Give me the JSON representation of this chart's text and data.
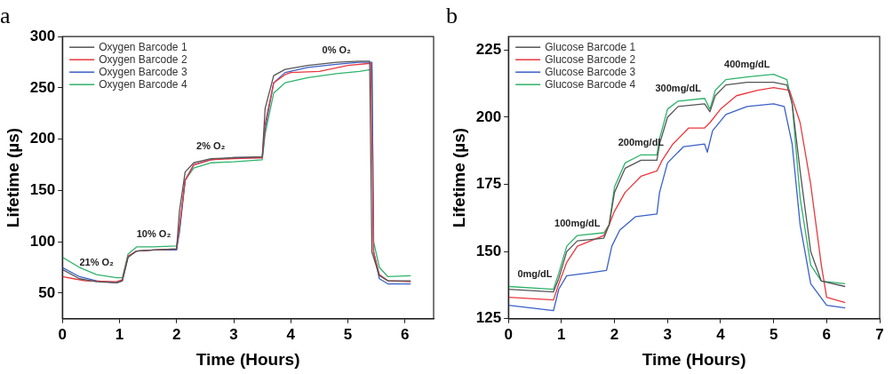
{
  "chart_data": [
    {
      "type": "line",
      "title": "a",
      "xlabel": "Time (Hours)",
      "ylabel": "Lifetime (µs)",
      "xlim": [
        0,
        6.5
      ],
      "xticks": [
        0,
        1,
        2,
        3,
        4,
        5,
        6
      ],
      "ylim": [
        25,
        300
      ],
      "yticks": [
        50,
        100,
        150,
        200,
        250,
        300
      ],
      "grid": false,
      "legend": "top left",
      "marker": "none",
      "line_style": "solid",
      "annotations": [
        {
          "text": "21% O₂",
          "x": 0.6,
          "y": 68
        },
        {
          "text": "10% O₂",
          "x": 1.6,
          "y": 95
        },
        {
          "text": "2% O₂",
          "x": 2.6,
          "y": 181
        },
        {
          "text": "0% O₂",
          "x": 4.8,
          "y": 275
        }
      ],
      "series": [
        {
          "name": "Oxygen Barcode 1",
          "color": "#555555",
          "x": [
            0,
            0.3,
            0.6,
            0.95,
            1.05,
            1.15,
            1.3,
            1.6,
            2.0,
            2.05,
            2.15,
            2.3,
            2.6,
            3.0,
            3.5,
            3.55,
            3.7,
            3.9,
            4.3,
            4.8,
            5.2,
            5.38,
            5.42,
            5.55,
            5.7,
            6.1
          ],
          "values": [
            73,
            64,
            61,
            60,
            62,
            85,
            91,
            92,
            93,
            130,
            168,
            177,
            181,
            182,
            183,
            230,
            262,
            268,
            272,
            275,
            276,
            276,
            90,
            67,
            62,
            62
          ]
        },
        {
          "name": "Oxygen Barcode 2",
          "color": "#e8383d",
          "x": [
            0,
            0.2,
            0.4,
            0.95,
            1.05,
            1.15,
            1.3,
            1.6,
            2.0,
            2.05,
            2.15,
            2.3,
            2.6,
            3.0,
            3.5,
            3.55,
            3.7,
            3.9,
            4.0,
            4.5,
            5.0,
            5.4,
            5.45,
            5.55,
            5.7,
            6.1
          ],
          "values": [
            66,
            64,
            62,
            61,
            63,
            86,
            91,
            92,
            93,
            115,
            160,
            175,
            180,
            181,
            182,
            215,
            255,
            263,
            265,
            266,
            272,
            274,
            90,
            68,
            62,
            61
          ]
        },
        {
          "name": "Oxygen Barcode 3",
          "color": "#3a5fc8",
          "x": [
            0,
            0.3,
            0.6,
            0.95,
            1.05,
            1.15,
            1.3,
            1.6,
            2.0,
            2.05,
            2.15,
            2.3,
            2.6,
            3.0,
            3.5,
            3.55,
            3.7,
            3.9,
            4.3,
            4.8,
            5.2,
            5.42,
            5.45,
            5.55,
            5.7,
            6.1
          ],
          "values": [
            75,
            66,
            62,
            60,
            62,
            85,
            91,
            92,
            92,
            110,
            160,
            175,
            180,
            182,
            182,
            210,
            255,
            265,
            270,
            273,
            275,
            275,
            90,
            64,
            59,
            59
          ]
        },
        {
          "name": "Oxygen Barcode 4",
          "color": "#2eb36a",
          "x": [
            0,
            0.3,
            0.6,
            0.95,
            1.05,
            1.15,
            1.3,
            1.6,
            2.0,
            2.05,
            2.15,
            2.3,
            2.6,
            3.0,
            3.5,
            3.55,
            3.7,
            3.9,
            4.3,
            4.8,
            5.2,
            5.42,
            5.45,
            5.55,
            5.7,
            6.1
          ],
          "values": [
            85,
            75,
            68,
            65,
            65,
            88,
            95,
            95,
            96,
            110,
            160,
            172,
            177,
            178,
            180,
            205,
            245,
            255,
            260,
            264,
            266,
            268,
            100,
            75,
            66,
            67
          ]
        }
      ]
    },
    {
      "type": "line",
      "title": "b",
      "xlabel": "Time (Hours)",
      "ylabel": "Lifetime (µs)",
      "xlim": [
        0,
        7
      ],
      "xticks": [
        0,
        1,
        2,
        3,
        4,
        5,
        6,
        7
      ],
      "ylim": [
        125,
        230
      ],
      "yticks": [
        125,
        150,
        175,
        200,
        225
      ],
      "grid": false,
      "legend": "top left",
      "marker": "none",
      "line_style": "solid",
      "annotations": [
        {
          "text": "0mg/dL",
          "x": 0.5,
          "y": 137
        },
        {
          "text": "100mg/dL",
          "x": 1.3,
          "y": 156
        },
        {
          "text": "200mg/dL",
          "x": 2.5,
          "y": 186
        },
        {
          "text": "300mg/dL",
          "x": 3.2,
          "y": 206
        },
        {
          "text": "400mg/dL",
          "x": 4.5,
          "y": 215
        }
      ],
      "series": [
        {
          "name": "Glucose Barcode 1",
          "color": "#555555",
          "x": [
            0,
            0.85,
            0.95,
            1.1,
            1.3,
            1.8,
            1.9,
            2.0,
            2.2,
            2.5,
            2.8,
            2.85,
            3.0,
            3.2,
            3.7,
            3.8,
            3.9,
            4.1,
            4.5,
            5.0,
            5.25,
            5.35,
            5.5,
            5.7,
            5.9,
            6.35
          ],
          "values": [
            136,
            135,
            140,
            150,
            154,
            155,
            160,
            172,
            181,
            184,
            184,
            190,
            200,
            204,
            205,
            202,
            208,
            212,
            213,
            213,
            212,
            205,
            180,
            150,
            139,
            137
          ]
        },
        {
          "name": "Glucose Barcode 2",
          "color": "#e8383d",
          "x": [
            0,
            0.85,
            0.95,
            1.1,
            1.3,
            1.8,
            1.9,
            2.0,
            2.2,
            2.5,
            2.8,
            2.9,
            3.1,
            3.4,
            3.7,
            3.8,
            4.0,
            4.3,
            4.7,
            5.0,
            5.3,
            5.5,
            5.7,
            5.9,
            6.0,
            6.35
          ],
          "values": [
            133,
            132,
            138,
            146,
            152,
            156,
            160,
            165,
            172,
            178,
            180,
            184,
            190,
            196,
            196,
            198,
            203,
            208,
            210,
            211,
            210,
            198,
            175,
            145,
            133,
            131
          ]
        },
        {
          "name": "Glucose Barcode 3",
          "color": "#3a5fc8",
          "x": [
            0,
            0.85,
            0.95,
            1.1,
            1.5,
            1.85,
            1.95,
            2.1,
            2.4,
            2.8,
            2.85,
            3.0,
            3.3,
            3.7,
            3.75,
            3.85,
            4.1,
            4.5,
            5.0,
            5.2,
            5.35,
            5.5,
            5.7,
            6.0,
            6.35
          ],
          "values": [
            130,
            128,
            136,
            141,
            142,
            143,
            152,
            158,
            163,
            164,
            172,
            183,
            189,
            190,
            187,
            195,
            201,
            204,
            205,
            204,
            190,
            160,
            138,
            130,
            129
          ]
        },
        {
          "name": "Glucose Barcode 4",
          "color": "#2eb36a",
          "x": [
            0,
            0.85,
            0.95,
            1.1,
            1.3,
            1.8,
            1.9,
            2.0,
            2.2,
            2.5,
            2.8,
            2.85,
            3.0,
            3.2,
            3.7,
            3.8,
            3.9,
            4.1,
            4.5,
            5.0,
            5.25,
            5.35,
            5.5,
            5.7,
            5.9,
            6.35
          ],
          "values": [
            137,
            136,
            142,
            152,
            156,
            157,
            160,
            174,
            183,
            186,
            186,
            192,
            203,
            206,
            207,
            203,
            210,
            214,
            215,
            216,
            214,
            205,
            170,
            145,
            139,
            138
          ]
        }
      ]
    }
  ]
}
